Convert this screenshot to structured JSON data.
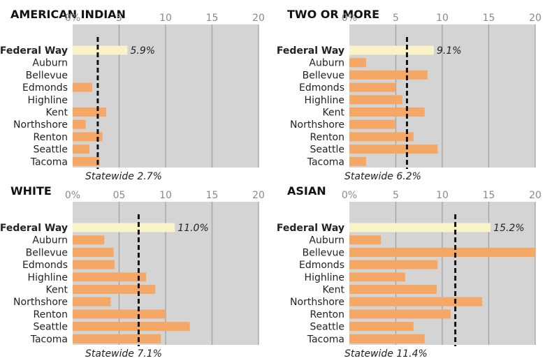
{
  "chart_data": [
    {
      "type": "bar",
      "orientation": "horizontal",
      "title": "AMERICAN INDIAN",
      "categories": [
        "Federal Way",
        "Auburn",
        "Bellevue",
        "Edmonds",
        "Highline",
        "Kent",
        "Northshore",
        "Renton",
        "Seattle",
        "Tacoma"
      ],
      "values": [
        5.9,
        0,
        0,
        2.1,
        0,
        3.6,
        1.4,
        3.2,
        1.8,
        2.9
      ],
      "highlight": "Federal Way",
      "value_labels": [
        "5.9%"
      ],
      "xticks": [
        "0%",
        "5",
        "10",
        "15",
        "20"
      ],
      "xlim": [
        0,
        20
      ],
      "reference": {
        "label": "Statewide 2.7%",
        "value": 2.7
      },
      "grid": true,
      "colors": {
        "bar": "#f5a866",
        "highlight": "#faf3c8",
        "panel": "#d4d4d4",
        "grid": "#9e9e9e"
      }
    },
    {
      "type": "bar",
      "orientation": "horizontal",
      "title": "TWO OR MORE",
      "categories": [
        "Federal Way",
        "Auburn",
        "Bellevue",
        "Edmonds",
        "Highline",
        "Kent",
        "Northshore",
        "Renton",
        "Seattle",
        "Tacoma"
      ],
      "values": [
        9.1,
        1.8,
        8.4,
        5.0,
        5.7,
        8.1,
        4.9,
        6.9,
        9.5,
        1.8
      ],
      "highlight": "Federal Way",
      "value_labels": [
        "9.1%"
      ],
      "xticks": [
        "0%",
        "5",
        "10",
        "15",
        "20"
      ],
      "xlim": [
        0,
        20
      ],
      "reference": {
        "label": "Statewide 6.2%",
        "value": 6.2
      },
      "grid": true,
      "colors": {
        "bar": "#f5a866",
        "highlight": "#faf3c8",
        "panel": "#d4d4d4",
        "grid": "#9e9e9e"
      }
    },
    {
      "type": "bar",
      "orientation": "horizontal",
      "title": "WHITE",
      "categories": [
        "Federal Way",
        "Auburn",
        "Bellevue",
        "Edmonds",
        "Highline",
        "Kent",
        "Northshore",
        "Renton",
        "Seattle",
        "Tacoma"
      ],
      "values": [
        11.0,
        3.4,
        4.4,
        4.5,
        7.9,
        8.9,
        4.1,
        10.0,
        12.6,
        9.5
      ],
      "highlight": "Federal Way",
      "value_labels": [
        "11.0%"
      ],
      "xticks": [
        "0%",
        "05",
        "10",
        "15",
        "20"
      ],
      "xlim": [
        0,
        20
      ],
      "reference": {
        "label": "Statewide 7.1%",
        "value": 7.1
      },
      "grid": true,
      "colors": {
        "bar": "#f5a866",
        "highlight": "#faf3c8",
        "panel": "#d4d4d4",
        "grid": "#9e9e9e"
      }
    },
    {
      "type": "bar",
      "orientation": "horizontal",
      "title": "ASIAN",
      "categories": [
        "Federal Way",
        "Auburn",
        "Bellevue",
        "Edmonds",
        "Highline",
        "Kent",
        "Northshore",
        "Renton",
        "Seattle",
        "Tacoma"
      ],
      "values": [
        15.2,
        3.4,
        20.4,
        9.5,
        6.0,
        9.4,
        14.3,
        10.9,
        6.9,
        8.1
      ],
      "highlight": "Federal Way",
      "value_labels": [
        "15.2%"
      ],
      "xticks": [
        "0%",
        "5",
        "10",
        "15",
        "20"
      ],
      "xlim": [
        0,
        20
      ],
      "reference": {
        "label": "Statewide 11.4%",
        "value": 11.4
      },
      "grid": true,
      "colors": {
        "bar": "#f5a866",
        "highlight": "#faf3c8",
        "panel": "#d4d4d4",
        "grid": "#9e9e9e"
      }
    }
  ]
}
